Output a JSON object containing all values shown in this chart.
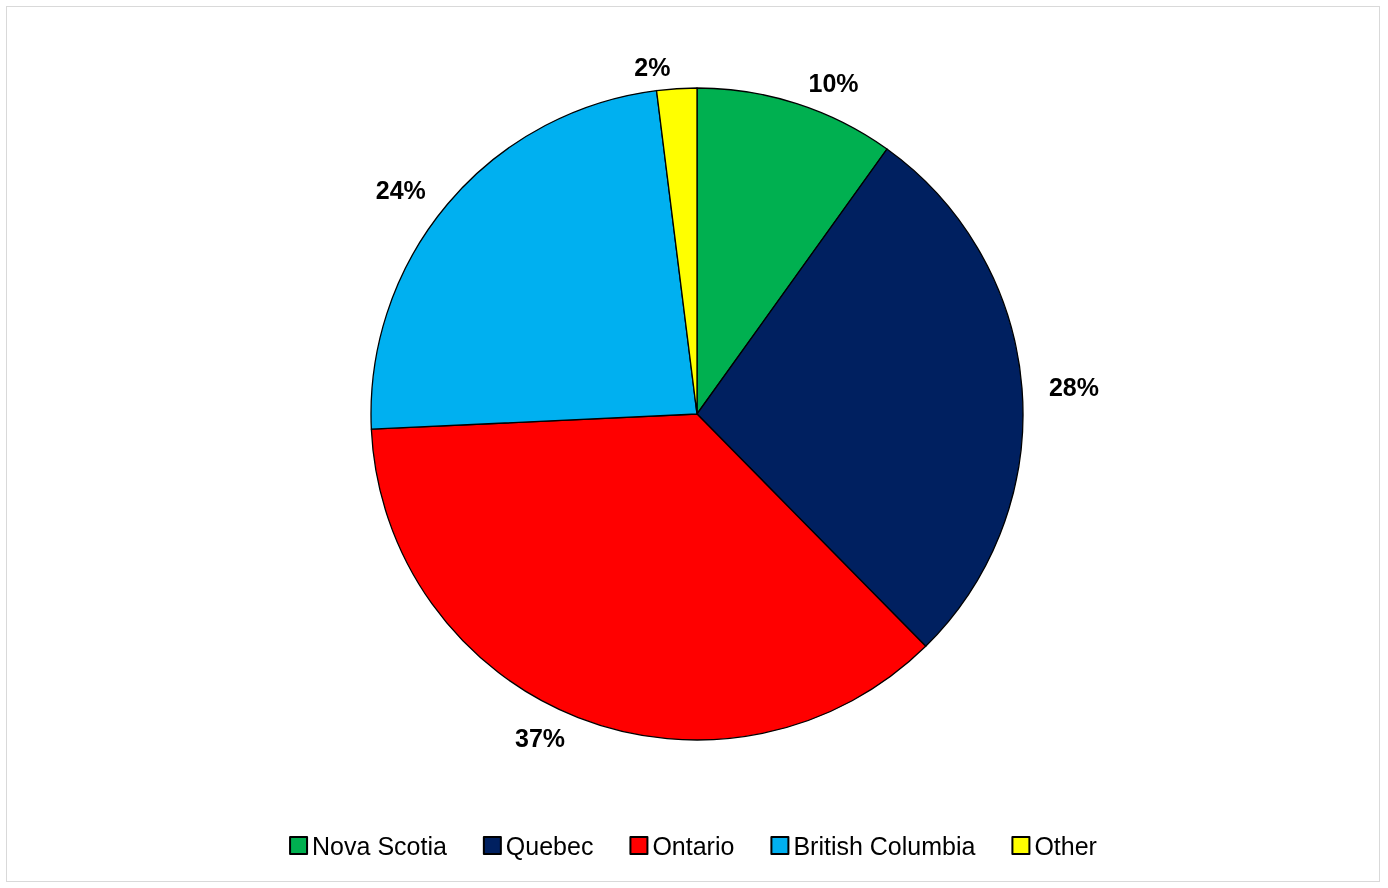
{
  "chart_data": {
    "type": "pie",
    "categories": [
      "Nova Scotia",
      "Quebec",
      "Ontario",
      "British Columbia",
      "Other"
    ],
    "values": [
      10,
      28,
      37,
      24,
      2
    ],
    "value_labels": [
      "10%",
      "28%",
      "37%",
      "24%",
      "2%"
    ],
    "colors": [
      "#00b050",
      "#002060",
      "#ff0000",
      "#00b0f0",
      "#ffff00"
    ],
    "legend": "bottom"
  }
}
